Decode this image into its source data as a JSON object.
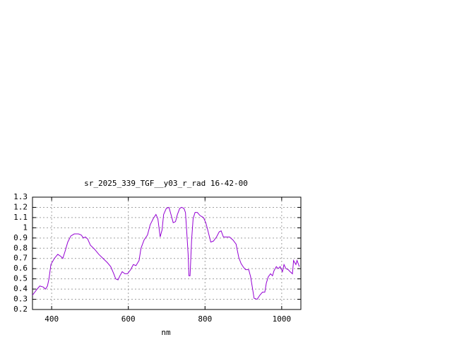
{
  "chart_data": {
    "type": "line",
    "title": "sr_2025_339_TGF__y03_r_rad 16-42-00",
    "x_label": "nm",
    "xlim": [
      350,
      1050
    ],
    "ylim": [
      0.2,
      1.3
    ],
    "xticks": [
      400,
      600,
      800,
      1000
    ],
    "yticks": [
      0.2,
      0.3,
      0.4,
      0.5,
      0.6,
      0.7,
      0.8,
      0.9,
      1,
      1.1,
      1.2,
      1.3
    ],
    "grid": true,
    "x": [
      350,
      360,
      369,
      378,
      384,
      389,
      393,
      398,
      407,
      416,
      424,
      429,
      435,
      442,
      450,
      459,
      470,
      477,
      483,
      488,
      494,
      501,
      512,
      523,
      534,
      545,
      554,
      562,
      567,
      573,
      578,
      584,
      591,
      598,
      606,
      613,
      620,
      628,
      633,
      641,
      650,
      657,
      665,
      672,
      677,
      683,
      688,
      692,
      699,
      706,
      712,
      717,
      723,
      728,
      734,
      739,
      745,
      749,
      752,
      756,
      758,
      761,
      765,
      769,
      774,
      780,
      787,
      796,
      802,
      807,
      815,
      822,
      830,
      837,
      842,
      848,
      855,
      864,
      873,
      881,
      888,
      894,
      901,
      906,
      914,
      919,
      925,
      928,
      936,
      943,
      950,
      956,
      960,
      965,
      971,
      976,
      980,
      986,
      991,
      996,
      1002,
      1006,
      1011,
      1017,
      1022,
      1028,
      1031,
      1037,
      1040,
      1046
    ],
    "series": [
      {
        "color": "#9400d3",
        "values": [
          0.34,
          0.39,
          0.43,
          0.42,
          0.4,
          0.43,
          0.5,
          0.64,
          0.7,
          0.74,
          0.72,
          0.7,
          0.77,
          0.86,
          0.92,
          0.94,
          0.94,
          0.93,
          0.9,
          0.91,
          0.89,
          0.83,
          0.79,
          0.74,
          0.7,
          0.66,
          0.62,
          0.55,
          0.5,
          0.49,
          0.53,
          0.57,
          0.55,
          0.55,
          0.59,
          0.64,
          0.63,
          0.68,
          0.8,
          0.88,
          0.93,
          1.03,
          1.09,
          1.13,
          1.09,
          0.91,
          0.98,
          1.13,
          1.19,
          1.2,
          1.12,
          1.05,
          1.06,
          1.13,
          1.19,
          1.2,
          1.19,
          1.15,
          0.98,
          0.74,
          0.53,
          0.53,
          0.88,
          1.09,
          1.15,
          1.15,
          1.12,
          1.1,
          1.05,
          0.98,
          0.86,
          0.87,
          0.91,
          0.96,
          0.97,
          0.91,
          0.91,
          0.91,
          0.88,
          0.84,
          0.71,
          0.65,
          0.61,
          0.59,
          0.59,
          0.52,
          0.38,
          0.31,
          0.3,
          0.34,
          0.37,
          0.37,
          0.46,
          0.52,
          0.55,
          0.53,
          0.58,
          0.62,
          0.6,
          0.62,
          0.57,
          0.64,
          0.6,
          0.59,
          0.57,
          0.55,
          0.68,
          0.64,
          0.68,
          0.62
        ]
      }
    ]
  }
}
